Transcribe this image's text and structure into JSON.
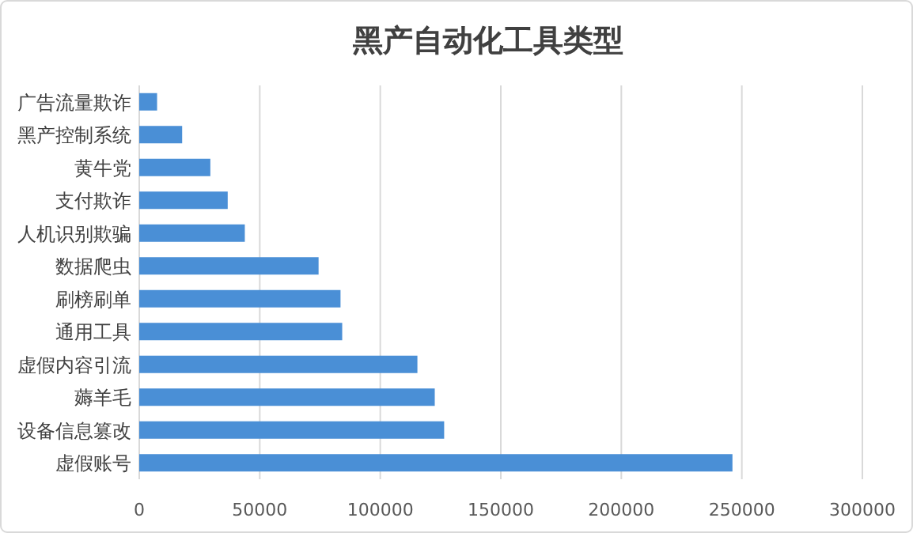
{
  "chart_data": {
    "type": "bar",
    "orientation": "horizontal",
    "title": "黑产自动化工具类型",
    "categories": [
      "广告流量欺诈",
      "黑产控制系统",
      "黄牛党",
      "支付欺诈",
      "人机识别欺骗",
      "数据爬虫",
      "刷榜刷单",
      "通用工具",
      "虚假内容引流",
      "薅羊毛",
      "设备信息篡改",
      "虚假账号"
    ],
    "values": [
      7400,
      17800,
      29500,
      36700,
      43800,
      74400,
      83500,
      84200,
      115400,
      122600,
      126500,
      246100
    ],
    "color": "#4a8fd6",
    "xlim": [
      0,
      300000
    ],
    "xticks": [
      0,
      50000,
      100000,
      150000,
      200000,
      250000,
      300000
    ],
    "grid": "x"
  }
}
